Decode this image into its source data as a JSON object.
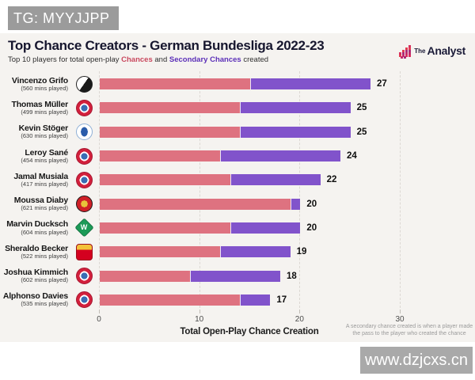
{
  "watermarks": {
    "top": "TG: MYYJJPP",
    "bottom": "www.dzjcxs.cn"
  },
  "header": {
    "title": "Top Chance Creators - German Bundesliga 2022-23",
    "subtitle_prefix": "Top 10 players for total open-play ",
    "subtitle_chances": "Chances",
    "subtitle_and": " and ",
    "subtitle_secondary": "Secondary Chances",
    "subtitle_suffix": " created"
  },
  "brand": {
    "the": "The",
    "analyst": "Analyst"
  },
  "colors": {
    "background_band": "#f5f3f0",
    "chances_bar": "#de7280",
    "secondary_bar": "#8153cb",
    "chances_word": "#c9485e",
    "secondary_word": "#5b2fb8"
  },
  "footnote": {
    "line1": "A secondary chance created is when a player made",
    "line2": "the pass to the player who created the chance"
  },
  "teams": {
    "bremen_letter": "W"
  },
  "chart_data": {
    "type": "bar",
    "orientation": "horizontal",
    "stacked": true,
    "title": "Top Chance Creators - German Bundesliga 2022-23",
    "xlabel": "Total Open-Play Chance Creation",
    "xlim": [
      0,
      30
    ],
    "x_ticks": [
      0,
      10,
      20,
      30
    ],
    "grid": true,
    "series": [
      {
        "name": "Chances",
        "color": "#de7280"
      },
      {
        "name": "Secondary Chances",
        "color": "#8153cb"
      }
    ],
    "players": [
      {
        "name": "Vincenzo Grifo",
        "mins": "(560 mins played)",
        "team": "freiburg",
        "chances": 15,
        "secondary": 12,
        "total": 27
      },
      {
        "name": "Thomas Müller",
        "mins": "(499 mins played)",
        "team": "bayern",
        "chances": 14,
        "secondary": 11,
        "total": 25
      },
      {
        "name": "Kevin Stöger",
        "mins": "(630 mins played)",
        "team": "bochum",
        "chances": 14,
        "secondary": 11,
        "total": 25
      },
      {
        "name": "Leroy Sané",
        "mins": "(454 mins played)",
        "team": "bayern",
        "chances": 12,
        "secondary": 12,
        "total": 24
      },
      {
        "name": "Jamal Musiala",
        "mins": "(417 mins played)",
        "team": "bayern",
        "chances": 13,
        "secondary": 9,
        "total": 22
      },
      {
        "name": "Moussa Diaby",
        "mins": "(621 mins played)",
        "team": "leverkusen",
        "chances": 19,
        "secondary": 1,
        "total": 20
      },
      {
        "name": "Marvin Ducksch",
        "mins": "(604 mins played)",
        "team": "bremen",
        "chances": 13,
        "secondary": 7,
        "total": 20
      },
      {
        "name": "Sheraldo Becker",
        "mins": "(522 mins played)",
        "team": "union",
        "chances": 12,
        "secondary": 7,
        "total": 19
      },
      {
        "name": "Joshua Kimmich",
        "mins": "(602 mins played)",
        "team": "bayern",
        "chances": 9,
        "secondary": 9,
        "total": 18
      },
      {
        "name": "Alphonso Davies",
        "mins": "(535 mins played)",
        "team": "bayern",
        "chances": 14,
        "secondary": 3,
        "total": 17
      }
    ]
  }
}
